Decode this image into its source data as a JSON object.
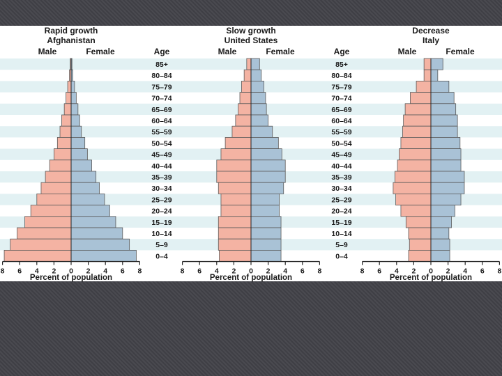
{
  "age_header": "Age",
  "male_label": "Male",
  "female_label": "Female",
  "chart_data": [
    {
      "type": "bar",
      "title": "Rapid growth",
      "subtitle": "Afghanistan",
      "xlabel": "Percent of population",
      "xlim": [
        -8,
        8
      ],
      "x_ticks": [
        "8",
        "6",
        "4",
        "2",
        "0",
        "2",
        "4",
        "6",
        "8"
      ],
      "categories": [
        "85+",
        "80–84",
        "75–79",
        "70–74",
        "65–69",
        "60–64",
        "55–59",
        "50–54",
        "45–49",
        "40–44",
        "35–39",
        "30–34",
        "25–29",
        "20–24",
        "15–19",
        "10–14",
        "5–9",
        "0–4"
      ],
      "series": [
        {
          "name": "Male",
          "values": [
            0.1,
            0.2,
            0.4,
            0.6,
            0.8,
            1.1,
            1.3,
            1.6,
            2.0,
            2.5,
            3.0,
            3.5,
            4.0,
            4.7,
            5.4,
            6.3,
            7.1,
            7.8
          ]
        },
        {
          "name": "Female",
          "values": [
            0.1,
            0.2,
            0.4,
            0.6,
            0.8,
            1.0,
            1.2,
            1.6,
            1.9,
            2.4,
            2.9,
            3.3,
            3.9,
            4.5,
            5.2,
            6.0,
            6.8,
            7.6
          ]
        }
      ]
    },
    {
      "type": "bar",
      "title": "Slow growth",
      "subtitle": "United States",
      "xlabel": "Percent of population",
      "xlim": [
        -8,
        8
      ],
      "x_ticks": [
        "8",
        "6",
        "4",
        "2",
        "0",
        "2",
        "4",
        "6",
        "8"
      ],
      "categories": [
        "85+",
        "80–84",
        "75–79",
        "70–74",
        "65–69",
        "60–64",
        "55–59",
        "50–54",
        "45–49",
        "40–44",
        "35–39",
        "30–34",
        "25–29",
        "20–24",
        "15–19",
        "10–14",
        "5–9",
        "0–4"
      ],
      "series": [
        {
          "name": "Male",
          "values": [
            0.5,
            0.8,
            1.1,
            1.3,
            1.5,
            1.8,
            2.2,
            3.0,
            3.5,
            4.0,
            4.0,
            3.8,
            3.5,
            3.5,
            3.8,
            3.8,
            3.8,
            3.7
          ]
        },
        {
          "name": "Female",
          "values": [
            1.0,
            1.2,
            1.5,
            1.7,
            1.8,
            2.0,
            2.5,
            3.2,
            3.6,
            4.0,
            4.0,
            3.8,
            3.3,
            3.3,
            3.5,
            3.5,
            3.5,
            3.5
          ]
        }
      ]
    },
    {
      "type": "bar",
      "title": "Decrease",
      "subtitle": "Italy",
      "xlabel": "Percent of population",
      "xlim": [
        -8,
        8
      ],
      "x_ticks": [
        "8",
        "6",
        "4",
        "2",
        "0",
        "2",
        "4",
        "6",
        "8"
      ],
      "categories": [
        "85+",
        "80–84",
        "75–79",
        "70–74",
        "65–69",
        "60–64",
        "55–59",
        "50–54",
        "45–49",
        "40–44",
        "35–39",
        "30–34",
        "25–29",
        "20–24",
        "15–19",
        "10–14",
        "5–9",
        "0–4"
      ],
      "series": [
        {
          "name": "Male",
          "values": [
            0.8,
            0.8,
            1.7,
            2.4,
            3.0,
            3.2,
            3.3,
            3.5,
            3.7,
            3.9,
            4.2,
            4.4,
            4.1,
            3.5,
            2.9,
            2.6,
            2.5,
            2.6
          ]
        },
        {
          "name": "Female",
          "values": [
            1.4,
            0.8,
            2.1,
            2.7,
            2.9,
            3.1,
            3.1,
            3.4,
            3.5,
            3.5,
            3.9,
            3.9,
            3.5,
            2.8,
            2.4,
            2.1,
            2.2,
            2.2
          ]
        }
      ]
    }
  ]
}
